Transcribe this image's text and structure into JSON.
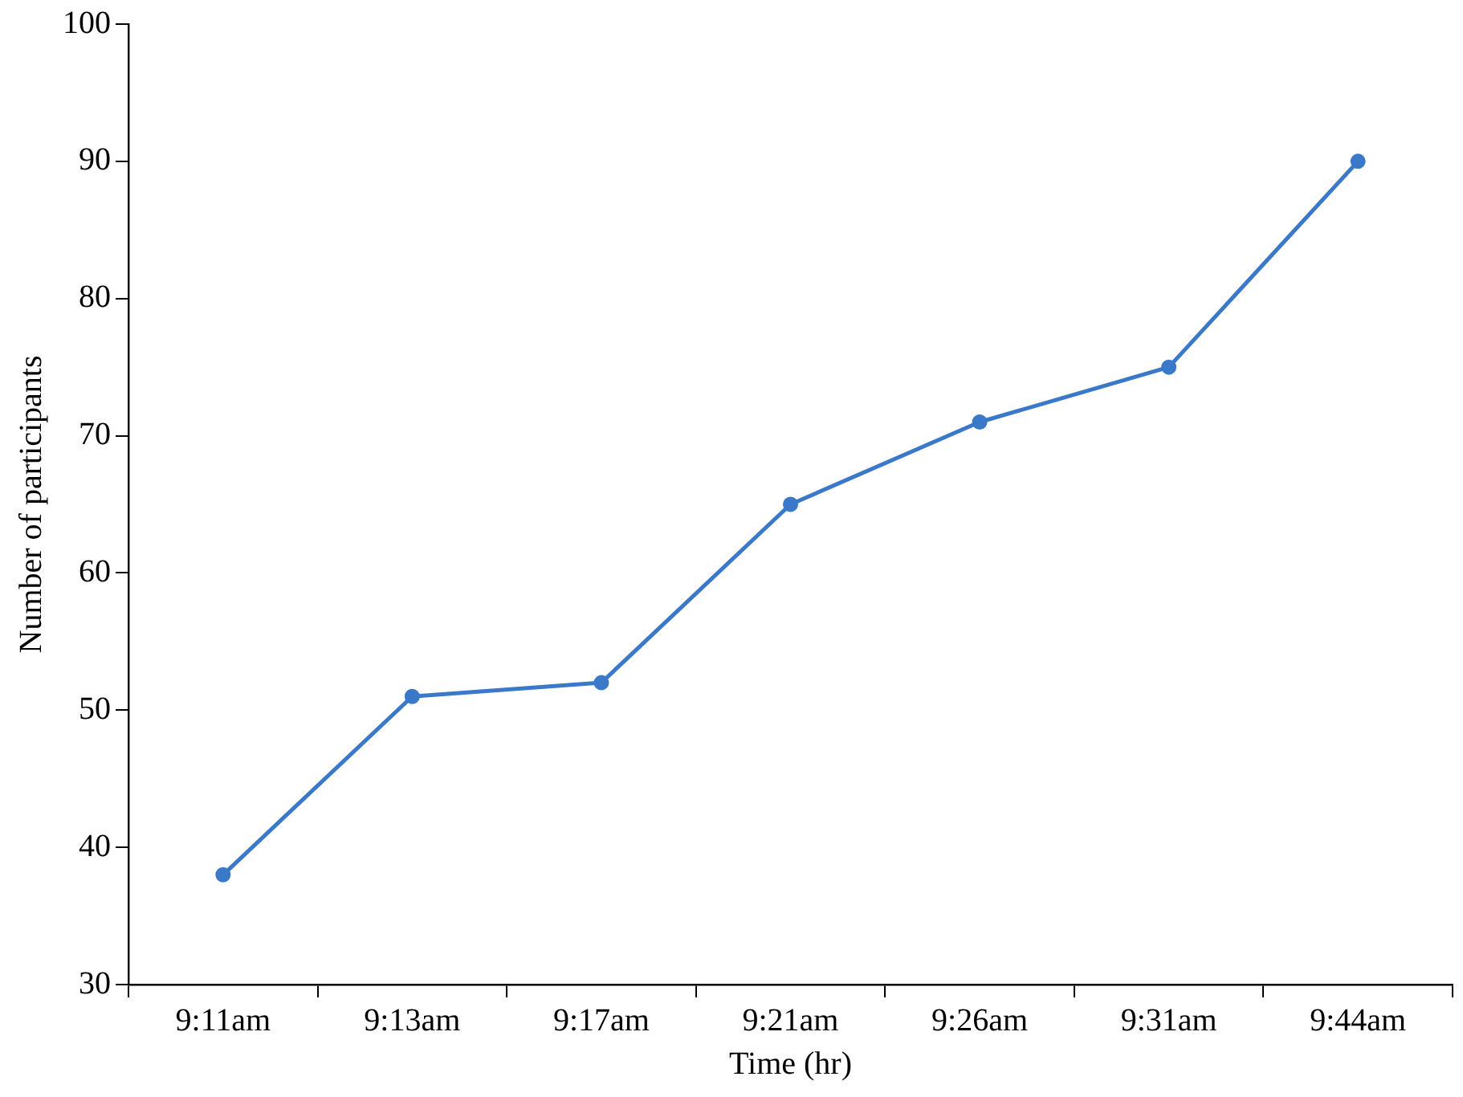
{
  "chart_data": {
    "type": "line",
    "xlabel": "Time (hr)",
    "ylabel": "Number of participants",
    "categories": [
      "9:11am",
      "9:13am",
      "9:17am",
      "9:21am",
      "9:26am",
      "9:31am",
      "9:44am"
    ],
    "series": [
      {
        "color": "#3a78c9",
        "values": [
          38,
          51,
          52,
          65,
          71,
          75,
          90
        ]
      }
    ],
    "ylim": [
      30,
      100
    ],
    "yticks": [
      30,
      40,
      50,
      60,
      70,
      80,
      90,
      100
    ],
    "grid": false,
    "legend": false,
    "marker": "circle",
    "line_style": "solid"
  }
}
